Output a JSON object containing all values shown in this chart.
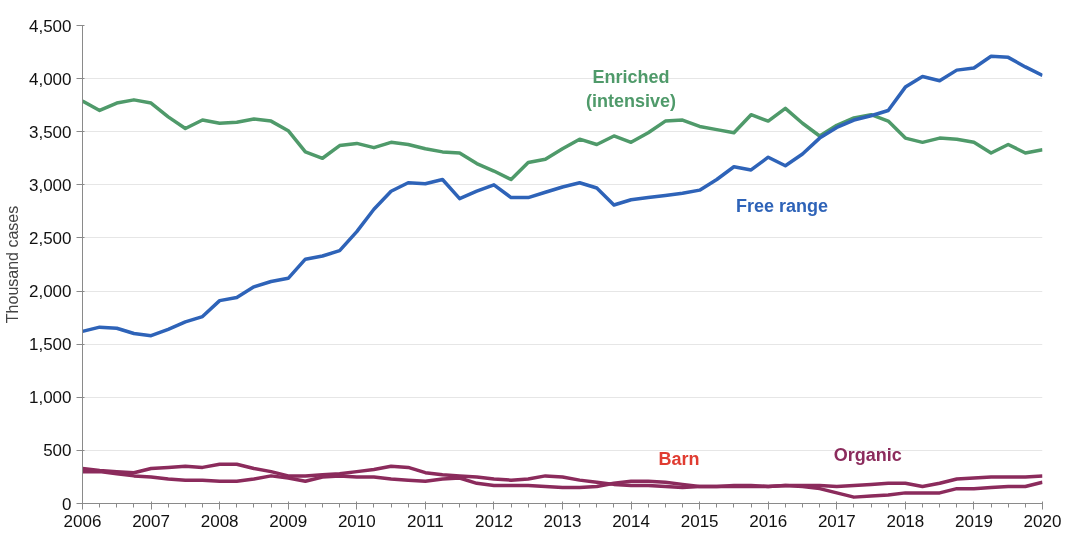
{
  "chart_data": {
    "type": "line",
    "ylabel": "Thousand cases",
    "x": [
      2006,
      2006.25,
      2006.5,
      2006.75,
      2007,
      2007.25,
      2007.5,
      2007.75,
      2008,
      2008.25,
      2008.5,
      2008.75,
      2009,
      2009.25,
      2009.5,
      2009.75,
      2010,
      2010.25,
      2010.5,
      2010.75,
      2011,
      2011.25,
      2011.5,
      2011.75,
      2012,
      2012.25,
      2012.5,
      2012.75,
      2013,
      2013.25,
      2013.5,
      2013.75,
      2014,
      2014.25,
      2014.5,
      2014.75,
      2015,
      2015.25,
      2015.5,
      2015.75,
      2016,
      2016.25,
      2016.5,
      2016.75,
      2017,
      2017.25,
      2017.5,
      2017.75,
      2018,
      2018.25,
      2018.5,
      2018.75,
      2019,
      2019.25,
      2019.5,
      2019.75,
      2020
    ],
    "series": [
      {
        "name": "Enriched (intensive)",
        "color": "#4f9a6a",
        "values": [
          3790,
          3700,
          3770,
          3800,
          3770,
          3640,
          3530,
          3610,
          3580,
          3590,
          3620,
          3600,
          3510,
          3310,
          3250,
          3370,
          3390,
          3350,
          3400,
          3380,
          3340,
          3310,
          3300,
          3200,
          3130,
          3050,
          3210,
          3240,
          3340,
          3430,
          3380,
          3460,
          3400,
          3490,
          3600,
          3610,
          3550,
          3520,
          3490,
          3660,
          3600,
          3720,
          3580,
          3460,
          3560,
          3630,
          3660,
          3600,
          3440,
          3400,
          3440,
          3430,
          3400,
          3300,
          3380,
          3300,
          3330
        ]
      },
      {
        "name": "Free range",
        "color": "#2e63b8",
        "values": [
          1620,
          1660,
          1650,
          1600,
          1580,
          1640,
          1710,
          1760,
          1910,
          1940,
          2040,
          2090,
          2120,
          2300,
          2330,
          2380,
          2560,
          2770,
          2940,
          3020,
          3010,
          3050,
          2870,
          2940,
          3000,
          2880,
          2880,
          2930,
          2980,
          3020,
          2970,
          2810,
          2860,
          2880,
          2900,
          2920,
          2950,
          3050,
          3170,
          3140,
          3260,
          3180,
          3290,
          3440,
          3540,
          3610,
          3650,
          3700,
          3920,
          4020,
          3980,
          4080,
          4100,
          4210,
          4200,
          4110,
          4030
        ]
      },
      {
        "name": "Barn",
        "color": "#8b2b5c",
        "values": [
          330,
          310,
          300,
          290,
          330,
          340,
          350,
          340,
          370,
          370,
          330,
          300,
          260,
          260,
          270,
          280,
          300,
          320,
          350,
          340,
          290,
          270,
          260,
          250,
          230,
          220,
          230,
          260,
          250,
          220,
          200,
          180,
          170,
          170,
          160,
          150,
          160,
          160,
          160,
          160,
          160,
          170,
          160,
          140,
          100,
          60,
          70,
          80,
          100,
          100,
          100,
          140,
          140,
          150,
          160,
          160,
          200
        ]
      },
      {
        "name": "Organic",
        "color": "#8b2b5c",
        "values": [
          300,
          300,
          280,
          260,
          250,
          230,
          220,
          220,
          210,
          210,
          230,
          260,
          240,
          210,
          250,
          260,
          250,
          250,
          230,
          220,
          210,
          230,
          240,
          190,
          170,
          170,
          170,
          160,
          150,
          150,
          160,
          190,
          210,
          210,
          200,
          180,
          160,
          160,
          170,
          170,
          160,
          170,
          170,
          170,
          160,
          170,
          180,
          190,
          190,
          160,
          190,
          230,
          240,
          250,
          250,
          250,
          260
        ]
      }
    ],
    "xlim": [
      2006,
      2020
    ],
    "xticks": [
      2006,
      2007,
      2008,
      2009,
      2010,
      2011,
      2012,
      2013,
      2014,
      2015,
      2016,
      2017,
      2018,
      2019,
      2020
    ],
    "ylim": [
      0,
      4500
    ],
    "yticks": [
      0,
      {
        "value": 500,
        "label": "500"
      },
      {
        "value": 1000,
        "label": "1,000"
      },
      {
        "value": 1500,
        "label": "1,500"
      },
      {
        "value": 2000,
        "label": "2,000"
      },
      {
        "value": 2500,
        "label": "2,500"
      },
      {
        "value": 3000,
        "label": "3,000"
      },
      {
        "value": 3500,
        "label": "3,500"
      },
      {
        "value": 4000,
        "label": "4,000"
      },
      {
        "value": 4500,
        "label": "4,500"
      }
    ],
    "grid": "y",
    "legend": false,
    "marker": "none",
    "line_style": "solid"
  }
}
